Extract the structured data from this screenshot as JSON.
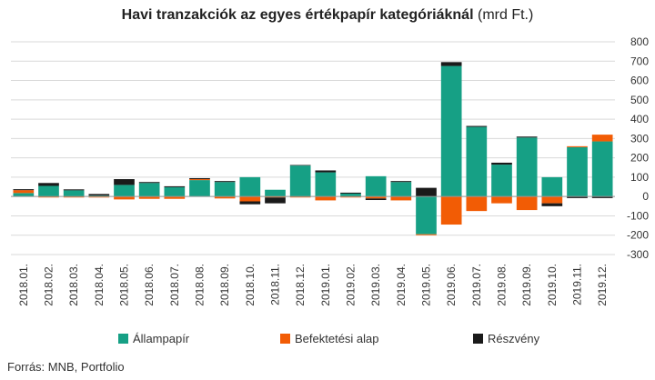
{
  "chart_data": {
    "type": "bar",
    "stacked": true,
    "title": "Havi tranzakciók az egyes értékpapír kategóriáknál",
    "unit": "(mrd Ft.)",
    "categories": [
      "2018.01.",
      "2018.02.",
      "2018.03.",
      "2018.04.",
      "2018.05.",
      "2018.06.",
      "2018.07.",
      "2018.08.",
      "2018.09.",
      "2018.10.",
      "2018.11.",
      "2018.12.",
      "2019.01.",
      "2019.02.",
      "2019.03.",
      "2019.04.",
      "2019.05.",
      "2019.06.",
      "2019.07.",
      "2019.08.",
      "2019.09.",
      "2019.10.",
      "2019.11.",
      "2019.12."
    ],
    "series": [
      {
        "name": "Állampapír",
        "color": "#16a085",
        "values": [
          18,
          55,
          32,
          5,
          60,
          70,
          48,
          85,
          75,
          100,
          35,
          160,
          125,
          15,
          105,
          75,
          -195,
          675,
          360,
          165,
          305,
          100,
          255,
          285
        ]
      },
      {
        "name": "Befektetési alap",
        "color": "#f25c05",
        "values": [
          15,
          -5,
          -5,
          -5,
          -15,
          -12,
          -12,
          5,
          -10,
          -25,
          -5,
          -5,
          -20,
          -5,
          -10,
          -20,
          -5,
          -145,
          -75,
          -35,
          -70,
          -35,
          5,
          35
        ]
      },
      {
        "name": "Részvény",
        "color": "#1a1a1a",
        "values": [
          5,
          15,
          5,
          8,
          30,
          5,
          5,
          5,
          5,
          -15,
          -30,
          3,
          10,
          5,
          -8,
          5,
          45,
          20,
          5,
          10,
          5,
          -15,
          -8,
          -8
        ]
      }
    ],
    "yticks": [
      800,
      700,
      600,
      500,
      400,
      300,
      200,
      100,
      0,
      -100,
      -200,
      -300
    ],
    "ylim": [
      -300,
      800
    ],
    "grid": true,
    "legend_position": "bottom"
  },
  "source": "Forrás: MNB, Portfolio"
}
